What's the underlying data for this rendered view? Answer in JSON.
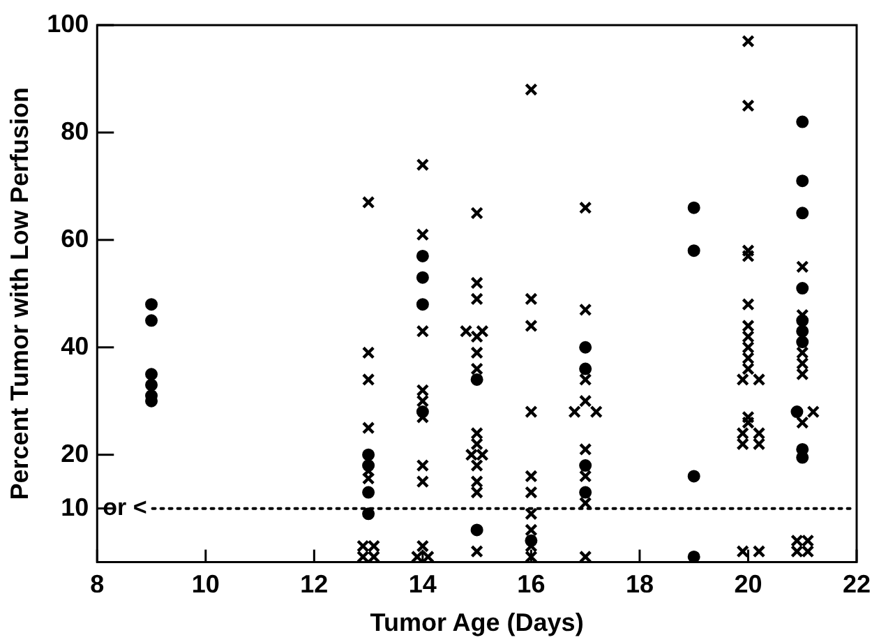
{
  "chart_data": {
    "type": "scatter",
    "xlabel": "Tumor Age (Days)",
    "ylabel": "Percent Tumor with Low Perfusion",
    "xlim": [
      8,
      22
    ],
    "xticks": [
      8,
      10,
      12,
      14,
      16,
      18,
      20,
      22
    ],
    "ylim": [
      0,
      100
    ],
    "yticks": [
      10,
      20,
      40,
      60,
      80,
      100
    ],
    "ref_lines": [
      {
        "axis": "y",
        "value": 10,
        "label": "or <",
        "color": "#000000",
        "line_style": "dotted"
      }
    ],
    "series": [
      {
        "color": "#000000",
        "marker": "circle",
        "x": [
          9,
          9,
          9,
          9,
          9,
          9,
          13,
          13,
          13,
          13,
          14,
          14,
          14,
          14,
          15,
          15,
          16,
          17,
          17,
          17,
          17,
          19,
          19,
          19,
          19,
          21,
          21,
          21,
          21,
          21,
          21,
          21,
          20.9,
          21,
          21
        ],
        "values": [
          48,
          45,
          35,
          33,
          31,
          30,
          20,
          18,
          13,
          9,
          57,
          53,
          48,
          28,
          34,
          6,
          4,
          40,
          36,
          18,
          13,
          66,
          58,
          16,
          1,
          82,
          71,
          65,
          51,
          45,
          43,
          41,
          28,
          21,
          19.5
        ]
      },
      {
        "color": "#000000",
        "marker": "cross",
        "x": [
          13,
          13,
          13,
          13,
          13,
          13,
          12.9,
          13.1,
          12.9,
          13.1,
          14,
          14,
          14,
          14,
          14,
          14,
          14,
          14,
          13.9,
          14.1,
          14,
          15,
          15,
          15,
          14.8,
          15.1,
          15,
          15,
          15,
          15,
          15,
          14.9,
          15.1,
          15,
          15,
          15,
          15,
          16,
          16,
          16,
          16,
          16,
          16,
          16,
          16,
          16,
          16,
          17,
          17,
          17,
          16.8,
          17.2,
          17,
          17,
          17,
          17,
          17,
          20,
          20,
          20,
          20,
          20,
          20,
          20,
          20,
          20,
          20,
          19.9,
          20.2,
          20,
          20,
          19.9,
          20.2,
          19.9,
          20.2,
          19.9,
          20.2,
          21,
          21,
          21,
          21,
          21,
          21.2,
          21,
          20.9,
          21.1,
          20.9,
          21.1
        ],
        "values": [
          67,
          39,
          34,
          25,
          17,
          15.6,
          3,
          3,
          1,
          1,
          74,
          61,
          43,
          32,
          30,
          27,
          18,
          15,
          1,
          1,
          3,
          65,
          52,
          49,
          43,
          43,
          42,
          39,
          36,
          24,
          22,
          20,
          20,
          18,
          15,
          13,
          2,
          88,
          49,
          44,
          28,
          16,
          13,
          9,
          6,
          3,
          1,
          66,
          47,
          34,
          28,
          28,
          30,
          21,
          16,
          11,
          1,
          97,
          85,
          58,
          57,
          48,
          44,
          42,
          40,
          38,
          36,
          34,
          34,
          27,
          26,
          24,
          24,
          22,
          22,
          2,
          2,
          55,
          46,
          39,
          37,
          35,
          28,
          26,
          4,
          4,
          2,
          2
        ]
      }
    ]
  }
}
